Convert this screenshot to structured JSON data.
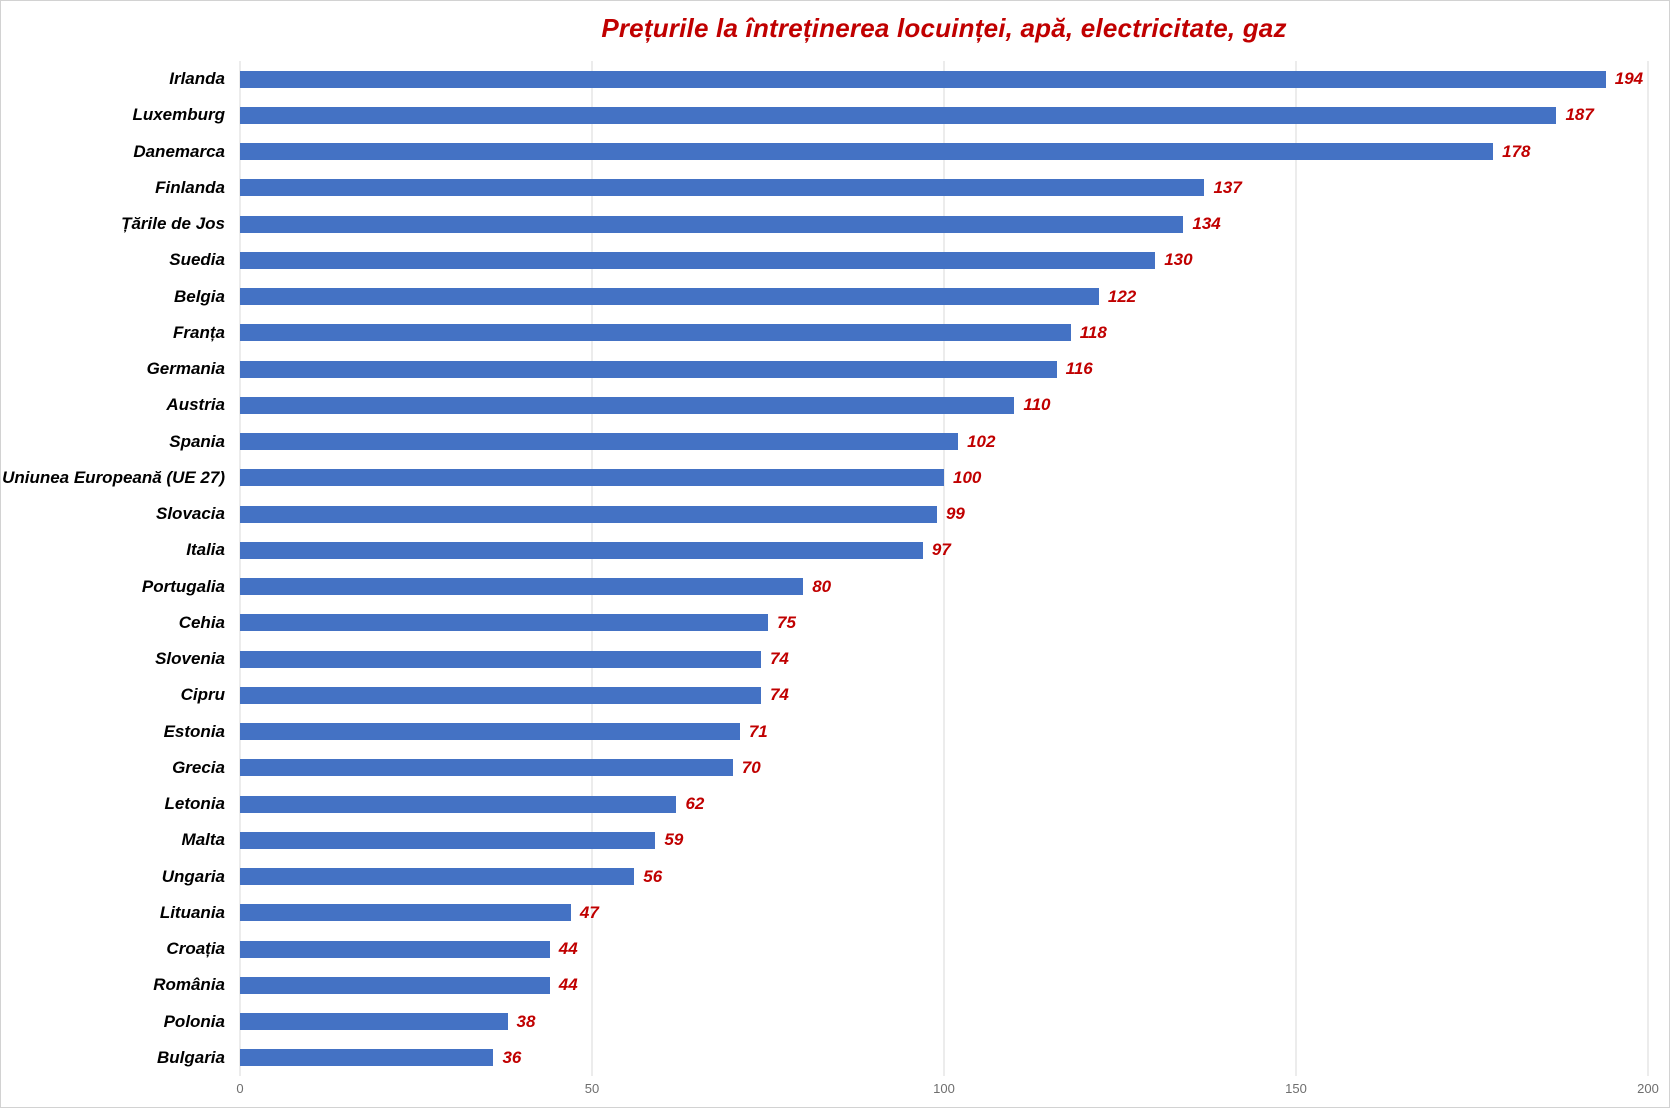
{
  "chart_data": {
    "type": "bar",
    "orientation": "horizontal",
    "title": "Prețurile la întreținerea locuinței, apă, electricitate, gaz",
    "categories": [
      "Irlanda",
      "Luxemburg",
      "Danemarca",
      "Finlanda",
      "Țările de Jos",
      "Suedia",
      "Belgia",
      "Franța",
      "Germania",
      "Austria",
      "Spania",
      "Uniunea Europeană (UE 27)",
      "Slovacia",
      "Italia",
      "Portugalia",
      "Cehia",
      "Slovenia",
      "Cipru",
      "Estonia",
      "Grecia",
      "Letonia",
      "Malta",
      "Ungaria",
      "Lituania",
      "Croația",
      "România",
      "Polonia",
      "Bulgaria"
    ],
    "values": [
      194,
      187,
      178,
      137,
      134,
      130,
      122,
      118,
      116,
      110,
      102,
      100,
      99,
      97,
      80,
      75,
      74,
      74,
      71,
      70,
      62,
      59,
      56,
      47,
      44,
      44,
      38,
      36
    ],
    "xlabel": "",
    "ylabel": "",
    "xlim": [
      0,
      200
    ],
    "x_ticks": [
      0,
      50,
      100,
      150,
      200
    ],
    "grid": "vertical-only",
    "legend": "none",
    "colors": {
      "bar": "#4472C4",
      "value_label": "#C00000",
      "title": "#C00000",
      "category_label": "#000000",
      "tick_label": "#6E6E6E",
      "gridline": "#D9D9D9",
      "background": "#FFFFFF",
      "border": "#D2D2D2"
    }
  }
}
